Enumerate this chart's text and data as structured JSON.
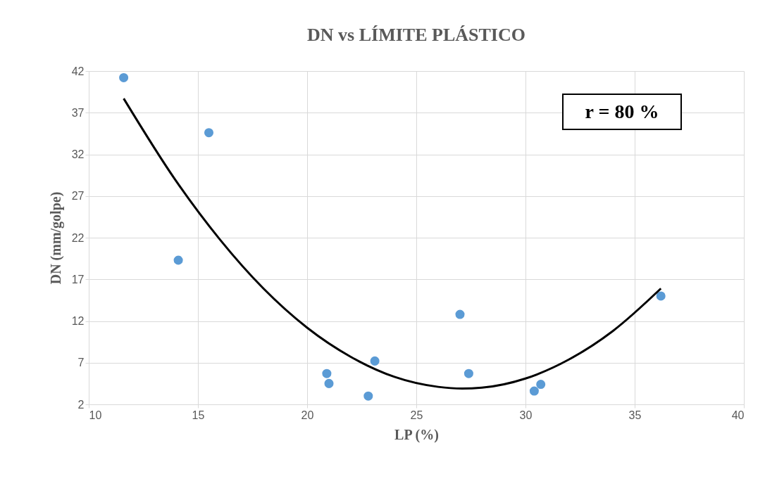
{
  "chart_data": {
    "type": "scatter",
    "title": "DN vs LÍMITE PLÁSTICO",
    "xlabel": "LP (%)",
    "ylabel": "DN (mm/golpe)",
    "xlim": [
      10,
      40
    ],
    "xticks": [
      10,
      15,
      20,
      25,
      30,
      35,
      40
    ],
    "ylim": [
      2,
      42
    ],
    "yticks": [
      2,
      7,
      12,
      17,
      22,
      27,
      32,
      37,
      42
    ],
    "grid": true,
    "legend": false,
    "annotations": [
      "r = 80 %"
    ],
    "series": [
      {
        "marker": "circle",
        "color": "#5b9bd5",
        "x": [
          11.6,
          15.5,
          14.1,
          20.9,
          21.0,
          22.8,
          23.1,
          27.0,
          27.4,
          30.4,
          30.7,
          36.2
        ],
        "values": [
          41.2,
          34.6,
          19.3,
          5.7,
          4.5,
          3.0,
          7.2,
          12.8,
          5.7,
          3.6,
          4.4,
          15.0
        ]
      },
      {
        "type": "line",
        "marker": "none",
        "color": "#000000",
        "x": [
          11.6,
          14,
          16,
          18,
          20,
          22,
          24,
          26,
          27.1,
          28,
          30,
          32,
          34,
          36.2
        ],
        "values": [
          38.7,
          28.8,
          21.8,
          15.9,
          11.2,
          7.7,
          5.3,
          4.1,
          3.9,
          4.0,
          5.1,
          7.4,
          10.8,
          15.9
        ]
      }
    ]
  }
}
